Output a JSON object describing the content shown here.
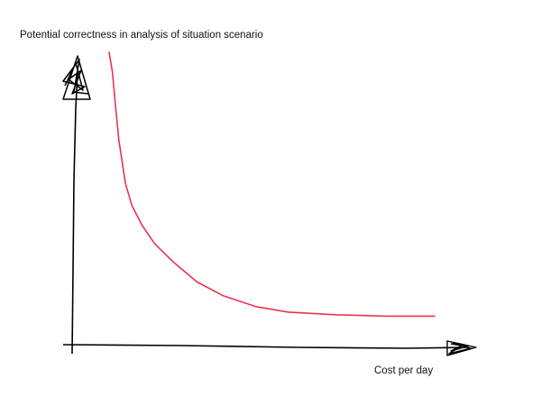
{
  "chart_data": {
    "type": "line",
    "title": "",
    "ylabel": "Potential correctness in analysis of situation scenario",
    "xlabel": "Cost per day",
    "axes_numbered": false,
    "grid": false,
    "legend": "none",
    "style": "hand-drawn sketch",
    "series": [
      {
        "color": "#e8344f",
        "x": [
          0.0,
          0.01,
          0.02,
          0.03,
          0.05,
          0.07,
          0.1,
          0.14,
          0.2,
          0.27,
          0.35,
          0.45,
          0.55,
          0.7,
          0.85,
          1.0
        ],
        "y": [
          1.0,
          0.93,
          0.8,
          0.68,
          0.52,
          0.44,
          0.37,
          0.3,
          0.23,
          0.16,
          0.11,
          0.07,
          0.05,
          0.04,
          0.035,
          0.035
        ]
      }
    ],
    "xlim": [
      0,
      1
    ],
    "ylim": [
      0,
      1
    ],
    "axis_color": "#000000"
  }
}
